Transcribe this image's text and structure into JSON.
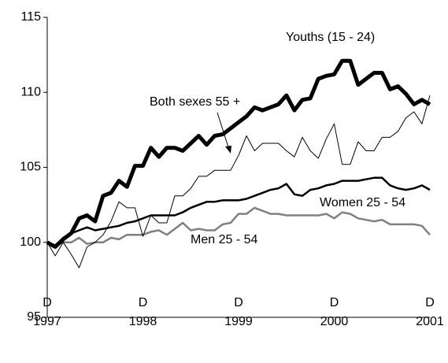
{
  "chart_data": {
    "type": "line",
    "categories": [
      "D 1997",
      null,
      null,
      null,
      null,
      null,
      null,
      null,
      null,
      null,
      null,
      null,
      "D 1998",
      null,
      null,
      null,
      null,
      null,
      null,
      null,
      null,
      null,
      null,
      null,
      "D 1999",
      null,
      null,
      null,
      null,
      null,
      null,
      null,
      null,
      null,
      null,
      null,
      "D 2000",
      null,
      null,
      null,
      null,
      null,
      null,
      null,
      null,
      null,
      null,
      null,
      "D 2001"
    ],
    "ylim": [
      95,
      115
    ],
    "yticks": [
      95,
      100,
      105,
      110,
      115
    ],
    "series": [
      {
        "name": "Youths (15 - 24)",
        "color": "#000000",
        "width": 5,
        "values": [
          100,
          99.7,
          100.2,
          100.6,
          101.6,
          101.8,
          101.4,
          103.1,
          103.3,
          104.1,
          103.7,
          105.1,
          105.1,
          106.3,
          105.7,
          106.3,
          106.3,
          106.1,
          106.6,
          107.1,
          106.5,
          107.1,
          107.2,
          107.6,
          108.0,
          108.4,
          109.0,
          108.8,
          109.0,
          109.2,
          109.8,
          108.8,
          109.5,
          109.6,
          110.9,
          111.1,
          111.2,
          112.1,
          112.1,
          110.5,
          110.9,
          111.3,
          111.3,
          110.2,
          110.4,
          109.9,
          109.2,
          109.5,
          109.2
        ]
      },
      {
        "name": "Both sexes 55 +",
        "color": "#000000",
        "width": 1,
        "values": [
          100,
          99.1,
          100.0,
          99.2,
          98.3,
          99.7,
          100.0,
          100.5,
          101.4,
          102.7,
          102.3,
          102.3,
          100.4,
          101.8,
          101.3,
          101.3,
          103.1,
          103.1,
          103.6,
          104.4,
          104.4,
          104.8,
          104.8,
          104.8,
          105.8,
          107.1,
          106.1,
          106.6,
          106.6,
          106.6,
          106.1,
          105.7,
          107.0,
          106.1,
          105.6,
          106.9,
          107.9,
          105.2,
          105.2,
          106.7,
          106.1,
          106.1,
          107.0,
          107.0,
          107.4,
          108.3,
          108.7,
          107.9,
          109.8
        ]
      },
      {
        "name": "Women 25 - 54",
        "color": "#000000",
        "width": 2.5,
        "values": [
          100,
          99.8,
          100.3,
          100.6,
          100.8,
          101.0,
          100.8,
          100.9,
          101.0,
          101.1,
          101.3,
          101.4,
          101.6,
          101.8,
          101.8,
          101.8,
          101.8,
          102.0,
          102.3,
          102.5,
          102.7,
          102.7,
          102.8,
          102.8,
          102.8,
          102.9,
          103.1,
          103.3,
          103.5,
          103.6,
          103.9,
          103.2,
          103.1,
          103.5,
          103.6,
          103.8,
          103.9,
          104.1,
          104.1,
          104.1,
          104.2,
          104.3,
          104.3,
          103.8,
          103.6,
          103.5,
          103.6,
          103.8,
          103.5
        ]
      },
      {
        "name": "Men 25 - 54",
        "color": "#808080",
        "width": 2.5,
        "values": [
          100,
          99.8,
          100.0,
          100.0,
          100.3,
          99.9,
          100.0,
          100.0,
          100.3,
          100.2,
          100.5,
          100.5,
          100.5,
          100.7,
          100.8,
          100.5,
          100.9,
          101.3,
          100.8,
          100.9,
          100.8,
          100.8,
          101.2,
          101.3,
          101.9,
          101.9,
          102.3,
          102.1,
          101.9,
          101.9,
          101.8,
          101.8,
          101.8,
          101.8,
          101.8,
          101.9,
          101.6,
          102.0,
          101.9,
          101.6,
          101.5,
          101.4,
          101.5,
          101.2,
          101.2,
          101.2,
          101.2,
          101.1,
          100.5
        ]
      }
    ]
  }
}
